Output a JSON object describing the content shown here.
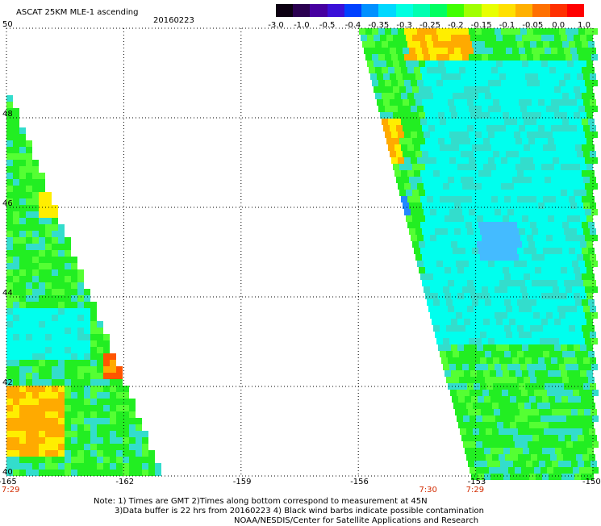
{
  "header": {
    "title": "ASCAT 25KM MLE-1 ascending",
    "date": "20160223"
  },
  "colorbar": {
    "ticks": [
      "-3.0",
      "-1.0",
      "-0.5",
      "-0.4",
      "-0.35",
      "-0.3",
      "-0.25",
      "-0.2",
      "-0.15",
      "-0.1",
      "-0.05",
      "0.0",
      "1.0"
    ],
    "colors": [
      "#0c0012",
      "#2a0050",
      "#4600a0",
      "#3a10d8",
      "#0040ff",
      "#0090ff",
      "#00d8ff",
      "#00ffe0",
      "#00ffb0",
      "#00ff60",
      "#40ff00",
      "#a0ff00",
      "#e8ff00",
      "#ffe000",
      "#ffb000",
      "#ff7000",
      "#ff3000",
      "#ff0000"
    ]
  },
  "map": {
    "lat_labels": [
      "50",
      "48",
      "46",
      "44",
      "42",
      "40"
    ],
    "lon_labels": [
      "-165",
      "-162",
      "-159",
      "-156",
      "-153",
      "-150"
    ],
    "time_labels": [
      {
        "text": "7:29",
        "lon": -165.0
      },
      {
        "text": "7:30",
        "lon": -154.2
      },
      {
        "text": "7:29",
        "lon": -153.0
      }
    ],
    "lon_range": [
      -165,
      -150
    ],
    "lat_range": [
      40,
      50
    ],
    "grid": true,
    "palette": {
      "green": "#22ee22",
      "lightgreen": "#55ff33",
      "cyan": "#00ffee",
      "aqua": "#33ddcc",
      "yellow": "#ffee00",
      "orange": "#ffaa00",
      "red": "#ff5500",
      "blue": "#2288ff"
    }
  },
  "footer": {
    "line1": "Note: 1) Times are GMT 2)Times along bottom correspond to measurement at 45N",
    "line2": "3)Data buffer is 22 hrs from 20160223 4) Black wind barbs indicate possible contamination",
    "line3": "NOAA/NESDIS/Center for Satellite Applications and Research"
  }
}
